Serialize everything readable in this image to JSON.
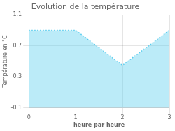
{
  "chart_data": {
    "type": "area",
    "title": "Evolution de la température",
    "xlabel": "heure par heure",
    "ylabel": "Température en °C",
    "x": [
      0,
      1,
      2,
      3
    ],
    "values": [
      0.9,
      0.9,
      0.45,
      0.9
    ],
    "color": "#55ccee",
    "line_style": "dotted",
    "xlim": [
      0,
      3
    ],
    "ylim": [
      -0.1,
      1.1
    ],
    "xticks": [
      0,
      1,
      2,
      3
    ],
    "yticks": [
      -0.1,
      0.3,
      0.7,
      1.1
    ],
    "grid": true
  }
}
